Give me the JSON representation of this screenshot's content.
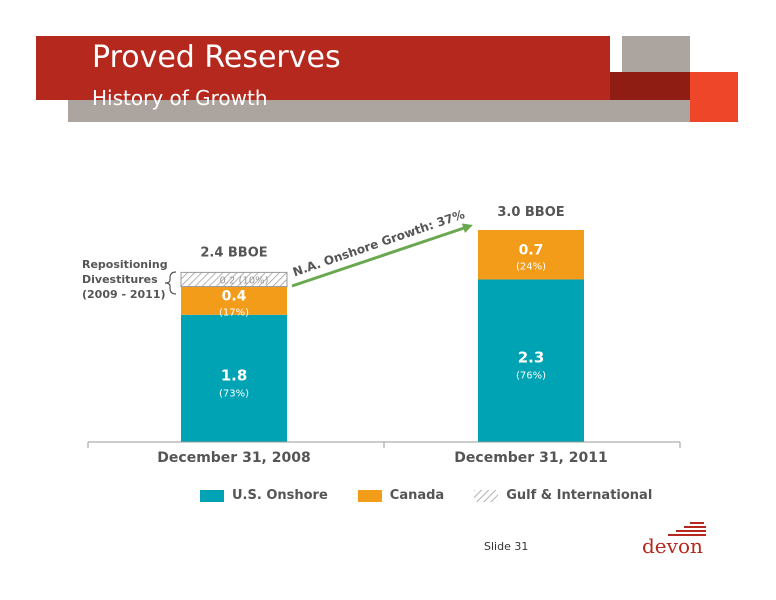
{
  "header": {
    "title": "Proved Reserves",
    "subtitle": "History of Growth"
  },
  "colors": {
    "us_onshore": "#00a3b4",
    "canada": "#f39c1a",
    "gulf": "#b8b8b8",
    "arrow": "#6aa84f",
    "header_red": "#b5281d"
  },
  "chart_data": {
    "type": "bar",
    "stacked": true,
    "categories": [
      "December 31, 2008",
      "December 31, 2011"
    ],
    "series": [
      {
        "name": "U.S. Onshore",
        "values": [
          1.8,
          2.3
        ],
        "labels": [
          "1.8",
          "2.3"
        ],
        "pct_labels": [
          "(73%)",
          "(76%)"
        ]
      },
      {
        "name": "Canada",
        "values": [
          0.4,
          0.7
        ],
        "labels": [
          "0.4",
          "0.7"
        ],
        "pct_labels": [
          "(17%)",
          "(24%)"
        ]
      },
      {
        "name": "Gulf & International",
        "values": [
          0.2,
          0
        ],
        "labels": [
          "0.2 (10%)",
          ""
        ],
        "pct_labels": [
          "",
          ""
        ]
      }
    ],
    "totals": [
      "2.4 BBOE",
      "3.0 BBOE"
    ],
    "ylim": [
      0,
      3.0
    ],
    "grid": false,
    "legend": "bottom",
    "annotations": {
      "growth": "N.A. Onshore Growth: 37%",
      "side_note": [
        "Repositioning",
        "Divestitures",
        "(2009 - 2011)"
      ]
    }
  },
  "footer": {
    "slide": "Slide 31",
    "logo": "devon",
    "logo_icon": "devon-logo-icon"
  }
}
